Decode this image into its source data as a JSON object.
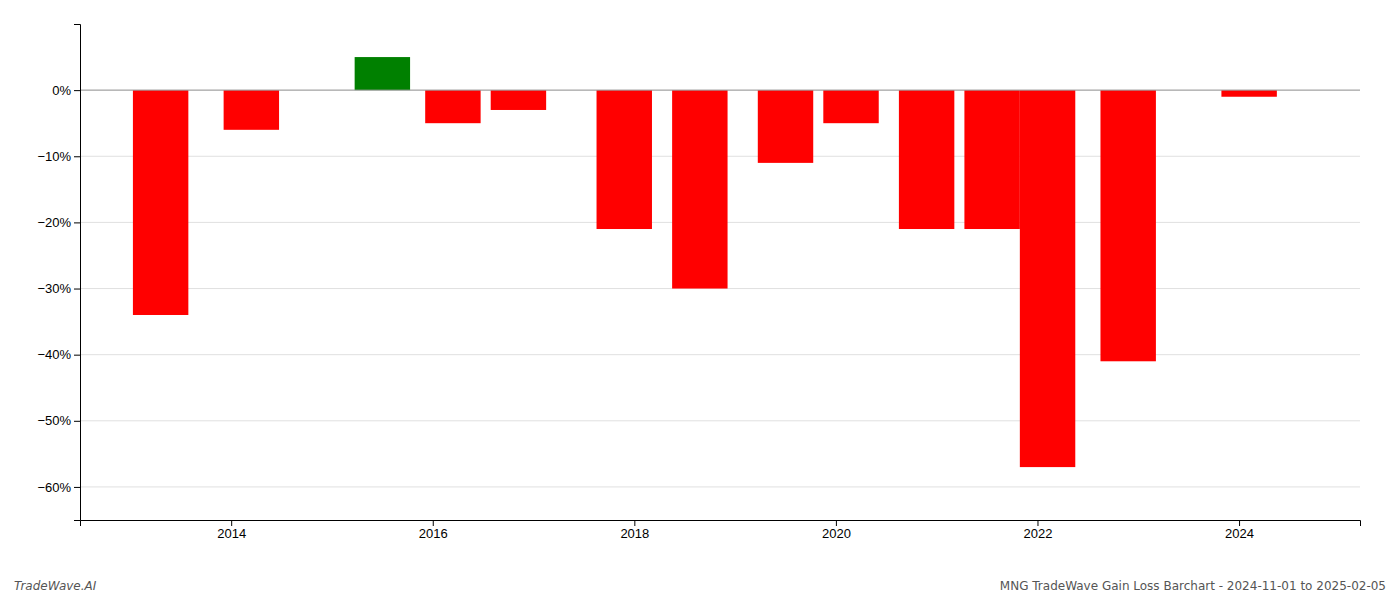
{
  "chart_data": {
    "type": "bar",
    "x": [
      2013.3,
      2014.2,
      2015.5,
      2016.2,
      2016.85,
      2017.9,
      2018.65,
      2019.5,
      2020.15,
      2020.9,
      2021.55,
      2022.1,
      2022.9,
      2024.1
    ],
    "values": [
      -34,
      -6,
      5,
      -5,
      -3,
      -21,
      -30,
      -11,
      -5,
      -21,
      -21,
      -57,
      -41,
      -1
    ],
    "colors": [
      "red",
      "red",
      "green",
      "red",
      "red",
      "red",
      "red",
      "red",
      "red",
      "red",
      "red",
      "red",
      "red",
      "red"
    ],
    "xlim": [
      2012.5,
      2025.2
    ],
    "ylim": [
      -65,
      10
    ],
    "xticks": [
      2014,
      2016,
      2018,
      2020,
      2022,
      2024
    ],
    "yticks": [
      {
        "value": 0,
        "label": "0%"
      },
      {
        "value": -10,
        "label": "−10%"
      },
      {
        "value": -20,
        "label": "−20%"
      },
      {
        "value": -30,
        "label": "−30%"
      },
      {
        "value": -40,
        "label": "−40%"
      },
      {
        "value": -50,
        "label": "−50%"
      },
      {
        "value": -60,
        "label": "−60%"
      }
    ],
    "grid": true,
    "annotations": [
      "TradeWave.AI",
      "MNG TradeWave Gain Loss Barchart - 2024-11-01 to 2025-02-05"
    ]
  }
}
